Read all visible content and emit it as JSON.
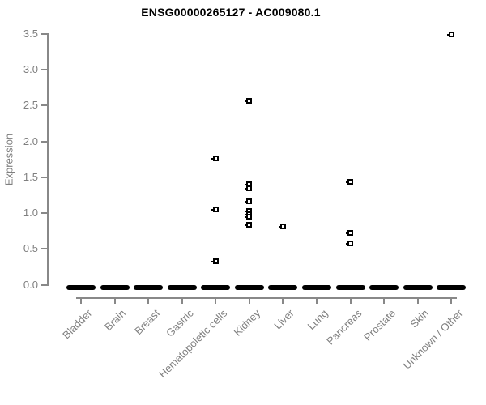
{
  "chart_data": {
    "type": "scatter",
    "title": "ENSG00000265127 - AC009080.1",
    "ylabel": "Expression",
    "xlabel": "",
    "ylim": [
      0.0,
      3.5
    ],
    "yticks": [
      0.0,
      0.5,
      1.0,
      1.5,
      2.0,
      2.5,
      3.0,
      3.5
    ],
    "grid": false,
    "legend": "none",
    "marker": "open-square",
    "categories": [
      "Bladder",
      "Brain",
      "Breast",
      "Gastric",
      "Hematopoietic cells",
      "Kidney",
      "Liver",
      "Lung",
      "Pancreas",
      "Prostate",
      "Skin",
      "Unknown / Other"
    ],
    "zero_bar": {
      "value": 0.0,
      "applies_to": "all_categories",
      "note": "thick black dash of overlapping zero-expression samples under every category"
    },
    "points": [
      {
        "category": "Hematopoietic cells",
        "value": 1.76
      },
      {
        "category": "Hematopoietic cells",
        "value": 1.05
      },
      {
        "category": "Hematopoietic cells",
        "value": 0.33
      },
      {
        "category": "Kidney",
        "value": 2.56
      },
      {
        "category": "Kidney",
        "value": 1.4
      },
      {
        "category": "Kidney",
        "value": 1.35
      },
      {
        "category": "Kidney",
        "value": 1.17
      },
      {
        "category": "Kidney",
        "value": 1.03
      },
      {
        "category": "Kidney",
        "value": 0.99
      },
      {
        "category": "Kidney",
        "value": 0.95
      },
      {
        "category": "Kidney",
        "value": 0.84
      },
      {
        "category": "Liver",
        "value": 0.81
      },
      {
        "category": "Pancreas",
        "value": 1.44
      },
      {
        "category": "Pancreas",
        "value": 0.72
      },
      {
        "category": "Pancreas",
        "value": 0.58
      },
      {
        "category": "Unknown / Other",
        "value": 3.49
      }
    ],
    "colors": {
      "points": "#000000",
      "axis": "#888888",
      "tick_labels": "#7f7f7f",
      "title": "#000000",
      "background": "#ffffff"
    }
  }
}
